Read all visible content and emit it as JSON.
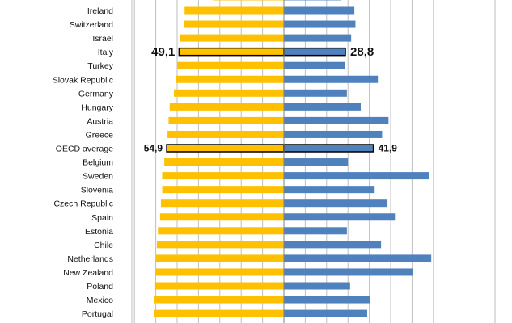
{
  "chart_data": {
    "type": "bar",
    "orientation": "horizontal-diverging",
    "categories": [
      "Ireland",
      "Switzerland",
      "Israel",
      "Italy",
      "Turkey",
      "Slovak Republic",
      "Germany",
      "Hungary",
      "Austria",
      "Greece",
      "OECD average",
      "Belgium",
      "Sweden",
      "Slovenia",
      "Czech Republic",
      "Spain",
      "Estonia",
      "Chile",
      "Netherlands",
      "New Zealand",
      "Poland",
      "Mexico",
      "Portugal"
    ],
    "series": [
      {
        "side": "left",
        "color": "#FFC000",
        "values": [
          46.5,
          46.8,
          48.7,
          49.1,
          50.0,
          50.5,
          51.5,
          53.5,
          54.0,
          54.5,
          54.9,
          56.0,
          57.0,
          57.0,
          57.6,
          58.0,
          59.0,
          59.5,
          60.0,
          60.2,
          60.3,
          60.8,
          61.0
        ]
      },
      {
        "side": "right",
        "color": "#4F81BD",
        "values": [
          33.0,
          33.5,
          31.5,
          28.8,
          28.5,
          44.0,
          29.5,
          36.0,
          49.0,
          46.0,
          41.9,
          30.0,
          68.0,
          42.5,
          48.5,
          52.0,
          29.5,
          45.5,
          69.0,
          60.5,
          31.0,
          40.5,
          39.0
        ]
      }
    ],
    "callouts": [
      {
        "category": "Italy",
        "left_label": "49,1",
        "right_label": "28,8"
      },
      {
        "category": "OECD average",
        "left_label": "54,9",
        "right_label": "41,9"
      }
    ],
    "xlim": [
      -70,
      70
    ],
    "grid": true
  }
}
